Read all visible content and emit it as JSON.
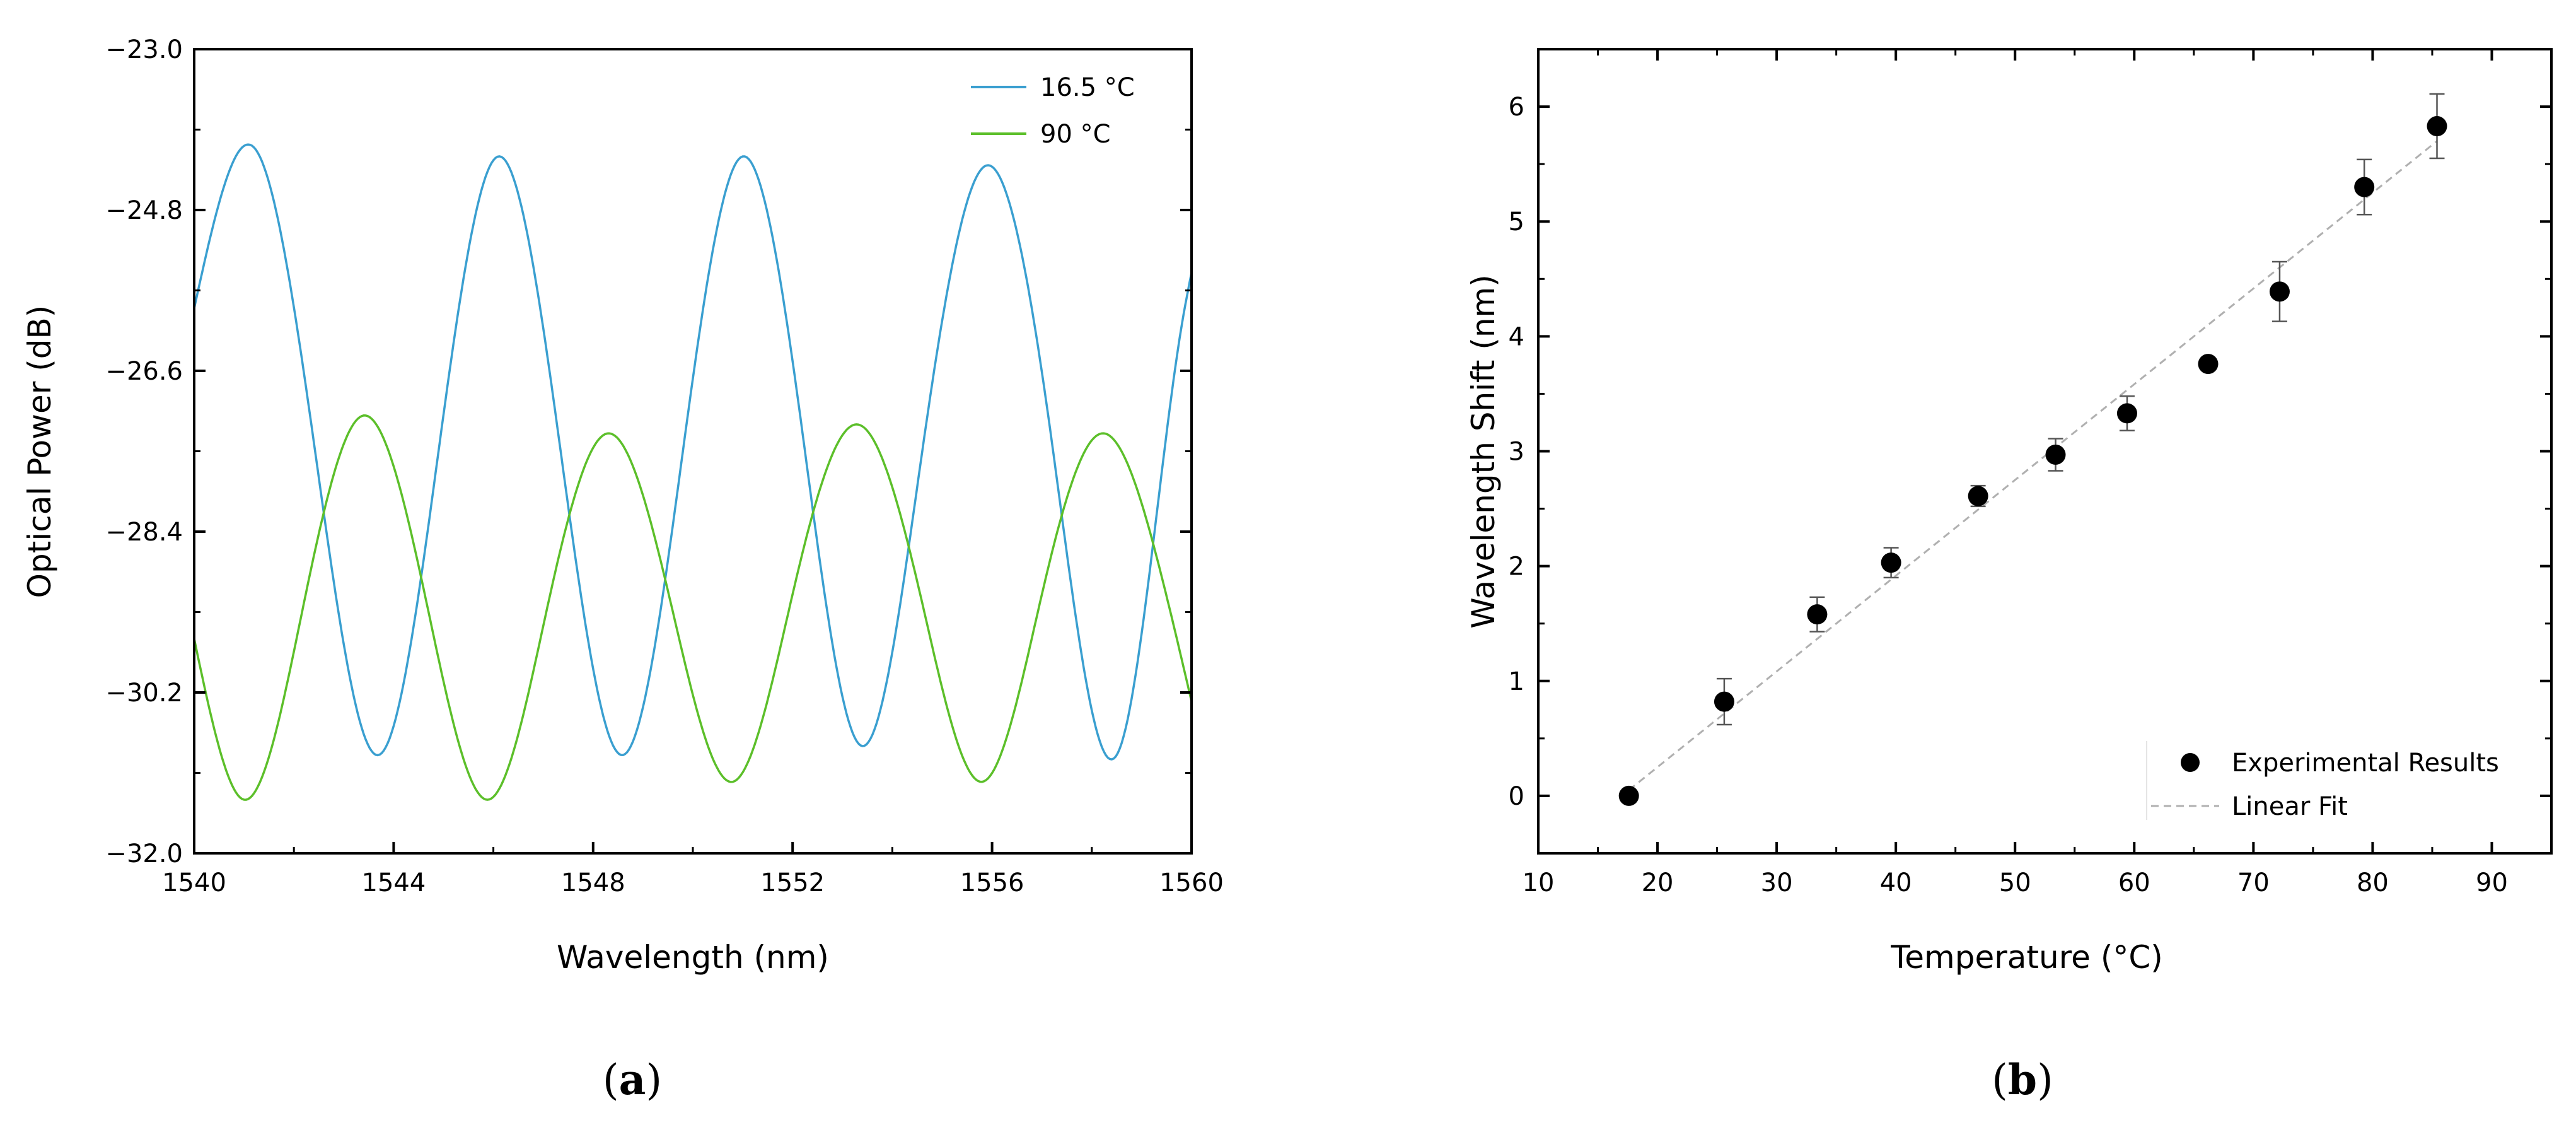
{
  "chart_data": [
    {
      "type": "line",
      "panel": "a",
      "xlabel": "Wavelength (nm)",
      "ylabel": "Optical Power (dB)",
      "xlim": [
        1540,
        1560
      ],
      "ylim": [
        -32.0,
        -23.0
      ],
      "xticks": [
        "1540",
        "1544",
        "1548",
        "1552",
        "1556",
        "1560"
      ],
      "xtick_values": [
        1540,
        1544,
        1548,
        1552,
        1556,
        1560
      ],
      "yticks": [
        "−32.0",
        "−30.2",
        "−28.4",
        "−26.6",
        "−24.8",
        "−23.0"
      ],
      "ytick_values": [
        -32.0,
        -30.2,
        -28.4,
        -26.6,
        -24.8,
        -23.0
      ],
      "legend_position": "top-right",
      "series": [
        {
          "name": "16.5 °C",
          "color": "#3a9fd0",
          "x": [
            1540.0,
            1541.2,
            1542.4,
            1543.7,
            1544.9,
            1546.1,
            1547.3,
            1548.6,
            1549.8,
            1551.0,
            1552.2,
            1553.4,
            1554.6,
            1555.9,
            1557.2,
            1558.5,
            1559.8,
            1560.0
          ],
          "y": [
            -25.9,
            -24.1,
            -27.4,
            -30.9,
            -27.5,
            -24.2,
            -27.3,
            -30.9,
            -27.5,
            -24.2,
            -27.3,
            -30.8,
            -27.5,
            -24.3,
            -27.4,
            -30.9,
            -26.1,
            -25.5
          ]
        },
        {
          "name": "90 °C",
          "color": "#5cbf2a",
          "x": [
            1540.0,
            1541.0,
            1542.2,
            1543.4,
            1544.7,
            1545.9,
            1547.1,
            1548.3,
            1549.6,
            1550.8,
            1552.0,
            1553.3,
            1554.6,
            1555.8,
            1557.0,
            1558.2,
            1559.4,
            1560.0
          ],
          "y": [
            -29.6,
            -31.4,
            -29.2,
            -27.1,
            -29.3,
            -31.4,
            -29.2,
            -27.3,
            -29.3,
            -31.2,
            -29.1,
            -27.2,
            -29.2,
            -31.2,
            -29.1,
            -27.3,
            -28.9,
            -30.3
          ]
        }
      ]
    },
    {
      "type": "scatter",
      "panel": "b",
      "xlabel": "Temperature (°C)",
      "ylabel": "Wavelength Shift (nm)",
      "xlim": [
        10,
        95
      ],
      "ylim": [
        -0.5,
        6.5
      ],
      "xticks": [
        "10",
        "20",
        "30",
        "40",
        "50",
        "60",
        "70",
        "80",
        "90"
      ],
      "xtick_values": [
        10,
        20,
        30,
        40,
        50,
        60,
        70,
        80,
        90
      ],
      "yticks": [
        "0",
        "1",
        "2",
        "3",
        "4",
        "5",
        "6"
      ],
      "ytick_values": [
        0,
        1,
        2,
        3,
        4,
        5,
        6
      ],
      "legend_position": "bottom-right",
      "series": [
        {
          "name": "Experimental Results",
          "marker": "circle",
          "color": "#000000",
          "x": [
            17.6,
            25.6,
            33.4,
            39.6,
            46.9,
            53.4,
            59.4,
            66.2,
            72.2,
            79.3,
            85.4
          ],
          "y": [
            0.0,
            0.82,
            1.58,
            2.03,
            2.61,
            2.97,
            3.33,
            3.76,
            4.39,
            5.3,
            5.83
          ],
          "yerr": [
            0.0,
            0.2,
            0.15,
            0.13,
            0.09,
            0.14,
            0.15,
            0.0,
            0.26,
            0.24,
            0.28
          ]
        },
        {
          "name": "Linear Fit",
          "style": "dashed",
          "color": "#b0b0b0",
          "x": [
            17.6,
            85.4
          ],
          "y": [
            0.05,
            5.7
          ]
        }
      ]
    }
  ],
  "panel_labels": {
    "a": {
      "open": "(",
      "letter": "a",
      "close": ")"
    },
    "b": {
      "open": "(",
      "letter": "b",
      "close": ")"
    }
  }
}
